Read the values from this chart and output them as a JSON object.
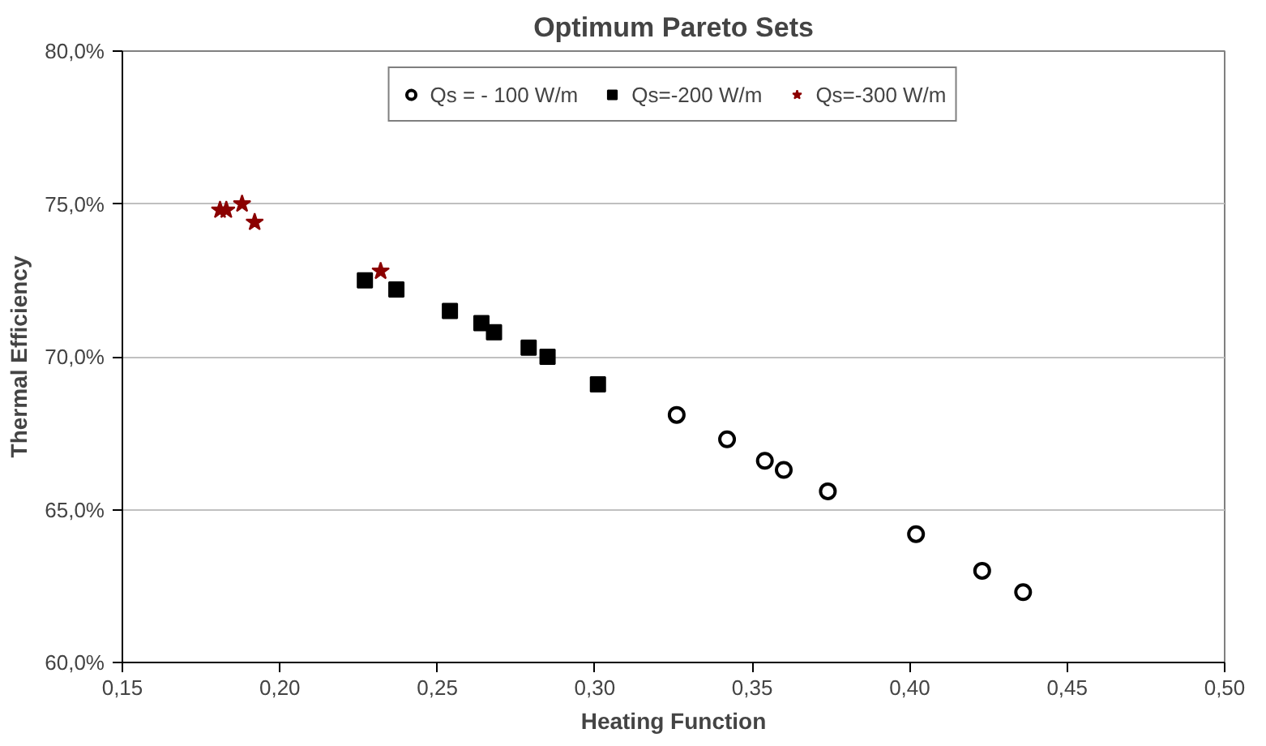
{
  "chart_data": {
    "type": "scatter",
    "title": "Optimum Pareto Sets",
    "xlabel": "Heating Function",
    "ylabel": "Thermal Efficiency",
    "xlim": [
      0.15,
      0.5
    ],
    "xticks": [
      {
        "value": 0.15,
        "label": "0,15"
      },
      {
        "value": 0.2,
        "label": "0,20"
      },
      {
        "value": 0.25,
        "label": "0,25"
      },
      {
        "value": 0.3,
        "label": "0,30"
      },
      {
        "value": 0.35,
        "label": "0,35"
      },
      {
        "value": 0.4,
        "label": "0,40"
      },
      {
        "value": 0.45,
        "label": "0,45"
      },
      {
        "value": 0.5,
        "label": "0,50"
      }
    ],
    "ylim": [
      60,
      80
    ],
    "yticks": [
      {
        "value": 60,
        "label": "60,0%"
      },
      {
        "value": 65,
        "label": "65,0%"
      },
      {
        "value": 70,
        "label": "70,0%"
      },
      {
        "value": 75,
        "label": "75,0%"
      },
      {
        "value": 80,
        "label": "80,0%"
      }
    ],
    "grid": "y",
    "legend": "top",
    "series": [
      {
        "name": "Qs = - 100 W/m",
        "color": "#000000",
        "marker": "circle",
        "x": [
          0.326,
          0.342,
          0.354,
          0.36,
          0.374,
          0.402,
          0.423,
          0.436
        ],
        "values": [
          68.1,
          67.3,
          66.6,
          66.3,
          65.6,
          64.2,
          63.0,
          62.3
        ]
      },
      {
        "name": "Qs=-200 W/m",
        "color": "#000000",
        "marker": "square",
        "x": [
          0.227,
          0.237,
          0.254,
          0.264,
          0.268,
          0.279,
          0.285,
          0.301
        ],
        "values": [
          72.5,
          72.2,
          71.5,
          71.1,
          70.8,
          70.3,
          70.0,
          69.1
        ]
      },
      {
        "name": "Qs=-300 W/m",
        "color": "#8b0000",
        "marker": "star",
        "x": [
          0.181,
          0.183,
          0.188,
          0.192,
          0.232
        ],
        "values": [
          74.8,
          74.8,
          75.0,
          74.4,
          72.8
        ]
      }
    ]
  }
}
